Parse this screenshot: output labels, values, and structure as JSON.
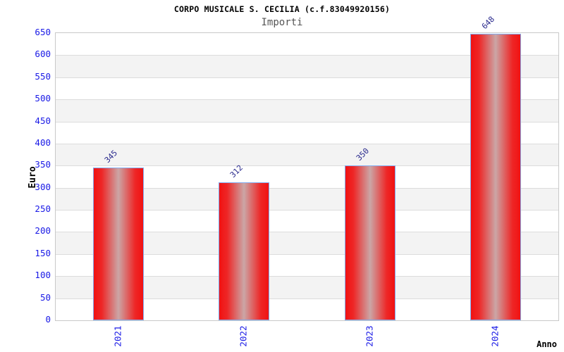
{
  "header": {
    "title": "CORPO MUSICALE S. CECILIA (c.f.83049920156)",
    "subtitle": "Importi"
  },
  "chart_data": {
    "type": "bar",
    "title": "CORPO MUSICALE S. CECILIA (c.f.83049920156)",
    "subtitle": "Importi",
    "categories": [
      "2021",
      "2022",
      "2023",
      "2024"
    ],
    "values": [
      345,
      312,
      350,
      648
    ],
    "value_labels": [
      "345",
      "312",
      "350",
      "648"
    ],
    "xlabel": "Anno",
    "ylabel": "Euro",
    "ylim": [
      0,
      650
    ],
    "ytick_step": 50,
    "y_ticks": [
      0,
      50,
      100,
      150,
      200,
      250,
      300,
      350,
      400,
      450,
      500,
      550,
      600,
      650
    ],
    "grid": true,
    "legend": false,
    "bands_alternating": true
  },
  "colors": {
    "background": "#ffffff",
    "band_gray": "#f3f3f3",
    "band_white": "#ffffff",
    "gridline": "#dcdcdc",
    "plot_border": "#c9c9c9",
    "tick_label_blue": "#1919e6",
    "value_label_navy": "#28288c",
    "bar_red": "#f11212",
    "bar_center_highlight": "#cba6a6",
    "bar_border_blue": "#82aaee",
    "title_black": "#000000",
    "subtitle_gray": "#555555"
  }
}
